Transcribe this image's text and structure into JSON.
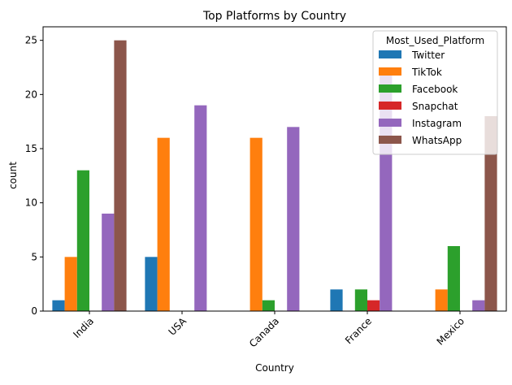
{
  "chart_data": {
    "type": "bar",
    "title": "Top Platforms by Country",
    "xlabel": "Country",
    "ylabel": "count",
    "categories": [
      "India",
      "USA",
      "Canada",
      "France",
      "Mexico"
    ],
    "ylim": [
      0,
      26.25
    ],
    "yticks": [
      0,
      5,
      10,
      15,
      20,
      25
    ],
    "grid": false,
    "legend": {
      "title": "Most_Used_Platform",
      "placement": "top-right"
    },
    "series": [
      {
        "name": "Twitter",
        "color": "#1f77b4",
        "values": [
          1,
          5,
          0,
          2,
          0
        ]
      },
      {
        "name": "TikTok",
        "color": "#ff7f0e",
        "values": [
          5,
          16,
          16,
          0,
          2
        ]
      },
      {
        "name": "Facebook",
        "color": "#2ca02c",
        "values": [
          13,
          0,
          1,
          2,
          6
        ]
      },
      {
        "name": "Snapchat",
        "color": "#d62728",
        "values": [
          0,
          0,
          0,
          1,
          0
        ]
      },
      {
        "name": "Instagram",
        "color": "#9467bd",
        "values": [
          9,
          19,
          17,
          22,
          1
        ]
      },
      {
        "name": "WhatsApp",
        "color": "#8c564b",
        "values": [
          25,
          0,
          0,
          0,
          18
        ]
      }
    ]
  }
}
